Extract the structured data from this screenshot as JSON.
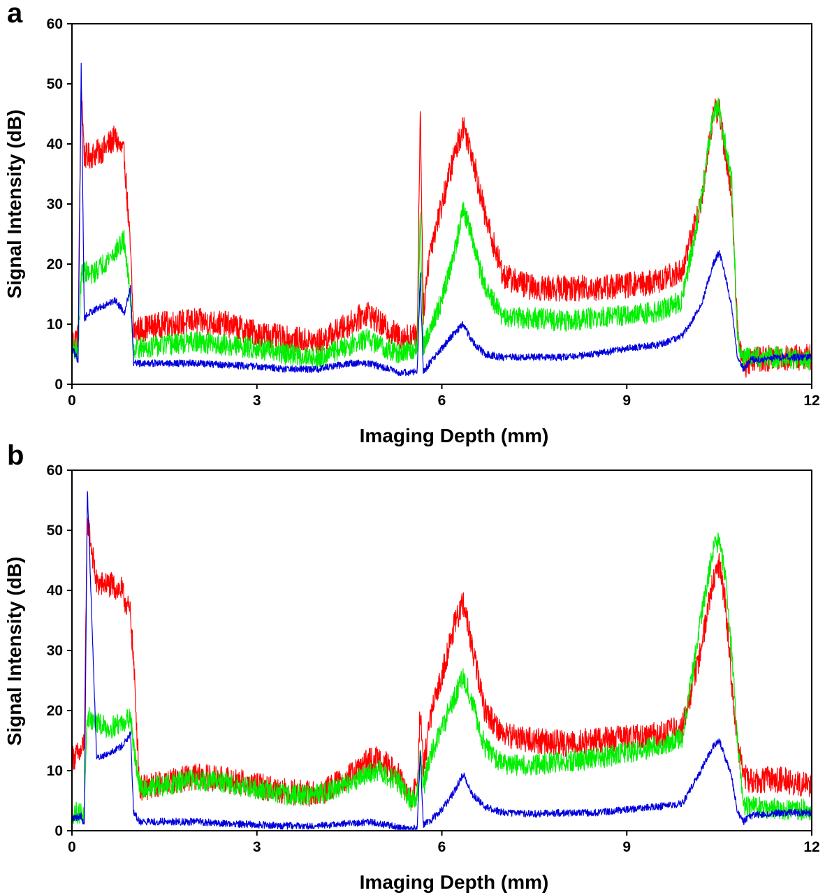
{
  "colors": {
    "red": "#ff0000",
    "green": "#00ee00",
    "blue": "#0000dd"
  },
  "chart_data": [
    {
      "type": "line",
      "panel_label": "a",
      "xlabel": "Imaging Depth (mm)",
      "ylabel": "Signal Intensity (dB)",
      "xlim": [
        0,
        12
      ],
      "ylim": [
        0,
        60
      ],
      "xticks": [
        0,
        3,
        6,
        9,
        12
      ],
      "yticks": [
        0,
        10,
        20,
        30,
        40,
        50,
        60
      ],
      "x": [
        0,
        0.1,
        0.15,
        0.2,
        0.3,
        0.5,
        0.7,
        0.85,
        0.95,
        1.0,
        1.5,
        2.0,
        2.5,
        3.0,
        3.5,
        4.0,
        4.5,
        4.8,
        5.0,
        5.3,
        5.6,
        5.65,
        5.7,
        5.8,
        6.0,
        6.2,
        6.35,
        6.5,
        6.7,
        7.0,
        7.5,
        8.0,
        8.5,
        9.0,
        9.5,
        9.9,
        10.2,
        10.4,
        10.5,
        10.6,
        10.7,
        10.8,
        10.9,
        11.0,
        11.5,
        12.0
      ],
      "series": [
        {
          "name": "red",
          "color_key": "red",
          "noise": 2.2,
          "values": [
            7,
            8,
            50,
            38,
            38,
            39,
            41,
            38,
            22,
            9,
            10,
            10.5,
            10,
            8.5,
            7.5,
            7,
            10,
            12,
            10,
            8,
            8,
            46,
            12,
            22,
            30,
            38,
            43,
            38,
            28,
            18,
            16,
            16,
            16,
            16.5,
            17,
            19,
            30,
            45,
            46,
            38,
            32,
            8,
            3,
            4,
            4.5,
            4.5
          ]
        },
        {
          "name": "green",
          "color_key": "green",
          "noise": 1.8,
          "values": [
            6,
            6,
            18,
            19,
            18,
            20,
            22,
            24,
            14,
            6,
            6.5,
            7,
            6.5,
            6,
            5,
            4.5,
            6.5,
            7.5,
            6.5,
            5,
            6,
            28,
            6,
            9,
            14,
            22,
            29,
            24,
            16,
            11,
            11,
            10.5,
            11,
            11.5,
            12,
            14,
            30,
            45,
            46,
            40,
            34,
            7,
            4,
            4.5,
            4.5,
            4
          ]
        },
        {
          "name": "blue",
          "color_key": "blue",
          "noise": 0.6,
          "values": [
            6,
            4,
            53,
            11,
            12,
            13,
            14,
            12,
            16,
            3.5,
            3.5,
            3.5,
            3.2,
            3,
            2.5,
            2.5,
            3.5,
            3.5,
            3,
            2,
            2,
            18,
            2,
            3.5,
            6,
            8.5,
            10,
            7,
            5,
            4.5,
            4.5,
            4.5,
            5,
            6,
            6.5,
            8,
            13,
            20,
            22,
            18,
            13,
            4,
            2.5,
            4,
            4.5,
            4.5
          ]
        }
      ]
    },
    {
      "type": "line",
      "panel_label": "b",
      "xlabel": "Imaging Depth (mm)",
      "ylabel": "Signal Intensity (dB)",
      "xlim": [
        0,
        12
      ],
      "ylim": [
        0,
        60
      ],
      "xticks": [
        0,
        3,
        6,
        9,
        12
      ],
      "yticks": [
        0,
        10,
        20,
        30,
        40,
        50,
        60
      ],
      "x": [
        0,
        0.15,
        0.2,
        0.25,
        0.4,
        0.6,
        0.8,
        0.95,
        1.0,
        1.1,
        1.5,
        2.0,
        2.5,
        3.0,
        3.5,
        4.0,
        4.5,
        4.8,
        5.0,
        5.3,
        5.5,
        5.6,
        5.65,
        5.7,
        5.8,
        6.0,
        6.2,
        6.35,
        6.5,
        6.7,
        7.0,
        7.5,
        8.0,
        8.5,
        9.0,
        9.5,
        9.9,
        10.2,
        10.4,
        10.5,
        10.6,
        10.7,
        10.8,
        10.9,
        11.0,
        11.5,
        12.0
      ],
      "series": [
        {
          "name": "red",
          "color_key": "red",
          "noise": 2.2,
          "values": [
            12,
            13,
            15,
            52,
            41,
            41,
            40,
            36,
            28,
            7,
            8,
            9,
            8.5,
            7.5,
            6.5,
            6,
            9,
            11.5,
            12,
            9,
            5,
            8,
            20,
            10,
            18,
            26,
            34,
            38,
            30,
            20,
            16,
            15,
            14.5,
            15,
            15.5,
            16,
            17,
            30,
            42,
            44,
            38,
            25,
            14,
            9,
            8.5,
            8.5,
            7.5
          ]
        },
        {
          "name": "green",
          "color_key": "green",
          "noise": 1.8,
          "values": [
            3,
            3,
            3,
            19,
            18,
            17,
            18,
            19,
            14,
            7,
            7.5,
            8.5,
            8,
            7,
            6,
            6,
            8,
            9.5,
            10,
            8,
            5,
            6,
            13,
            7,
            12,
            17,
            22,
            26,
            21,
            14,
            11,
            11,
            11.5,
            12,
            13,
            14,
            15.5,
            35,
            47,
            48,
            42,
            30,
            14,
            4,
            4,
            3.5,
            3.5
          ]
        },
        {
          "name": "blue",
          "color_key": "blue",
          "noise": 0.6,
          "values": [
            2,
            2.5,
            1,
            57,
            12,
            13,
            14,
            16,
            3,
            1.5,
            1.5,
            1.5,
            1.2,
            1,
            0.8,
            0.8,
            1.2,
            1.5,
            1.2,
            0.5,
            0.2,
            0.5,
            13,
            1,
            1.5,
            3.5,
            6.5,
            9.5,
            6,
            4,
            3,
            2.8,
            3,
            3,
            3.5,
            4,
            4.5,
            10,
            14,
            15,
            12,
            9,
            3,
            1.5,
            2.5,
            3,
            3
          ]
        }
      ]
    }
  ]
}
